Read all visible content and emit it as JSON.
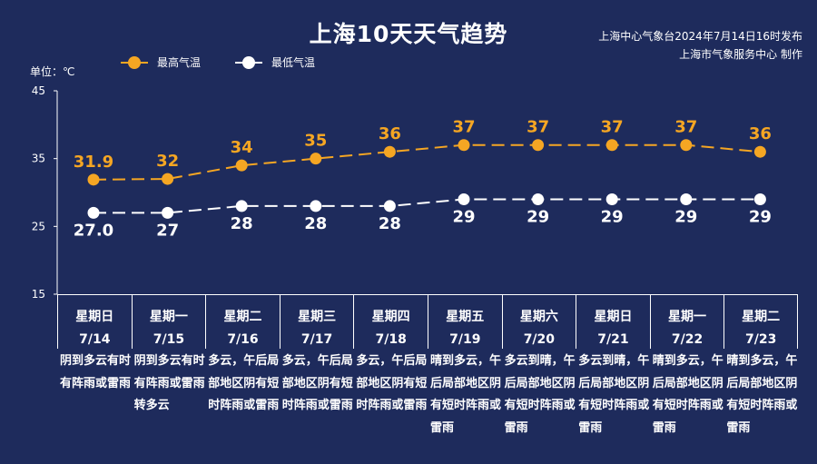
{
  "title": "上海10天天气趋势",
  "issuer": {
    "line1": "上海中心气象台2024年7月14日16时发布",
    "line2": "上海市气象服务中心 制作"
  },
  "unit": "单位：℃",
  "legend": {
    "high": "最高气温",
    "low": "最低气温"
  },
  "colors": {
    "background": "#1e2b5c",
    "high": "#f5a623",
    "low": "#ffffff"
  },
  "chart_data": {
    "type": "line",
    "categories": [
      "7/14",
      "7/15",
      "7/16",
      "7/17",
      "7/18",
      "7/19",
      "7/20",
      "7/21",
      "7/22",
      "7/23"
    ],
    "series": [
      {
        "name": "最高气温",
        "values": [
          31.9,
          32,
          34,
          35,
          36,
          37,
          37,
          37,
          37,
          36
        ],
        "labels": [
          "31.9",
          "32",
          "34",
          "35",
          "36",
          "37",
          "37",
          "37",
          "37",
          "36"
        ]
      },
      {
        "name": "最低气温",
        "values": [
          27.0,
          27,
          28,
          28,
          28,
          29,
          29,
          29,
          29,
          29
        ],
        "labels": [
          "27.0",
          "27",
          "28",
          "28",
          "28",
          "29",
          "29",
          "29",
          "29",
          "29"
        ]
      }
    ],
    "ylim": [
      15,
      45
    ],
    "yticks": [
      "15",
      "25",
      "35",
      "45"
    ],
    "ylabel": "单位：℃"
  },
  "days": [
    {
      "weekday": "星期日",
      "date": "7/14",
      "weather": "阴到多云有时有阵雨或雷雨"
    },
    {
      "weekday": "星期一",
      "date": "7/15",
      "weather": "阴到多云有时有阵雨或雷雨转多云"
    },
    {
      "weekday": "星期二",
      "date": "7/16",
      "weather": "多云，午后局部地区阴有短时阵雨或雷雨"
    },
    {
      "weekday": "星期三",
      "date": "7/17",
      "weather": "多云，午后局部地区阴有短时阵雨或雷雨"
    },
    {
      "weekday": "星期四",
      "date": "7/18",
      "weather": "多云，午后局部地区阴有短时阵雨或雷雨"
    },
    {
      "weekday": "星期五",
      "date": "7/19",
      "weather": "晴到多云，午后局部地区阴有短时阵雨或雷雨"
    },
    {
      "weekday": "星期六",
      "date": "7/20",
      "weather": "多云到晴，午后局部地区阴有短时阵雨或雷雨"
    },
    {
      "weekday": "星期日",
      "date": "7/21",
      "weather": "多云到晴，午后局部地区阴有短时阵雨或雷雨"
    },
    {
      "weekday": "星期一",
      "date": "7/22",
      "weather": "晴到多云，午后局部地区阴有短时阵雨或雷雨"
    },
    {
      "weekday": "星期二",
      "date": "7/23",
      "weather": "晴到多云，午后局部地区阴有短时阵雨或雷雨"
    }
  ]
}
